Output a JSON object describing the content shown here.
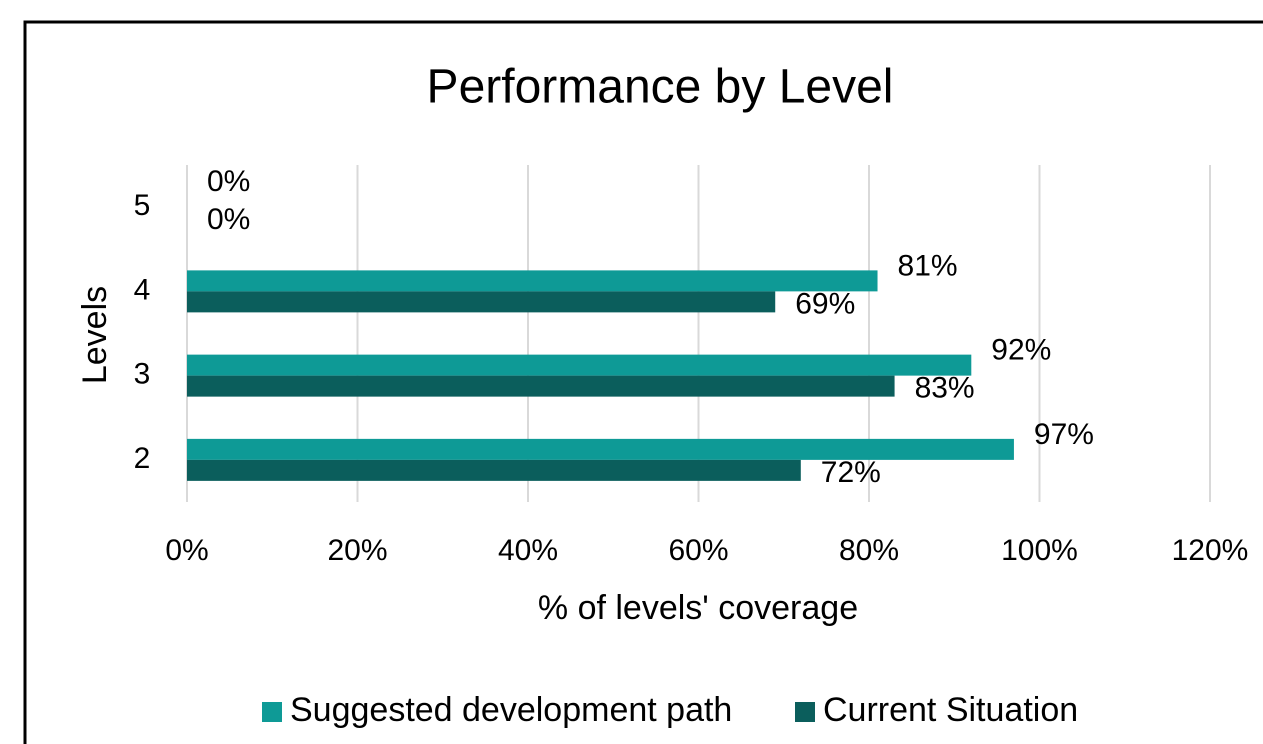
{
  "chart_data": {
    "type": "hbar",
    "title": "Performance by Level",
    "x_label": "% of levels' coverage",
    "y_label": "Levels",
    "categories": [
      "2",
      "3",
      "4",
      "5"
    ],
    "series": [
      {
        "name": "Suggested development path",
        "color": "#0e9a96",
        "values": [
          97,
          92,
          81,
          0
        ],
        "value_labels": [
          "97%",
          "92%",
          "81%",
          "0%"
        ]
      },
      {
        "name": "Current Situation",
        "color": "#0b5e5c",
        "values": [
          72,
          83,
          69,
          0
        ],
        "value_labels": [
          "72%",
          "83%",
          "69%",
          "0%"
        ]
      }
    ],
    "xlim": [
      0,
      120
    ],
    "xticks": [
      {
        "value": 0,
        "label": "0%"
      },
      {
        "value": 20,
        "label": "20%"
      },
      {
        "value": 40,
        "label": "40%"
      },
      {
        "value": 60,
        "label": "60%"
      },
      {
        "value": 80,
        "label": "80%"
      },
      {
        "value": 100,
        "label": "100%"
      },
      {
        "value": 120,
        "label": "120%"
      }
    ],
    "grid": true,
    "legend": "bottom"
  }
}
